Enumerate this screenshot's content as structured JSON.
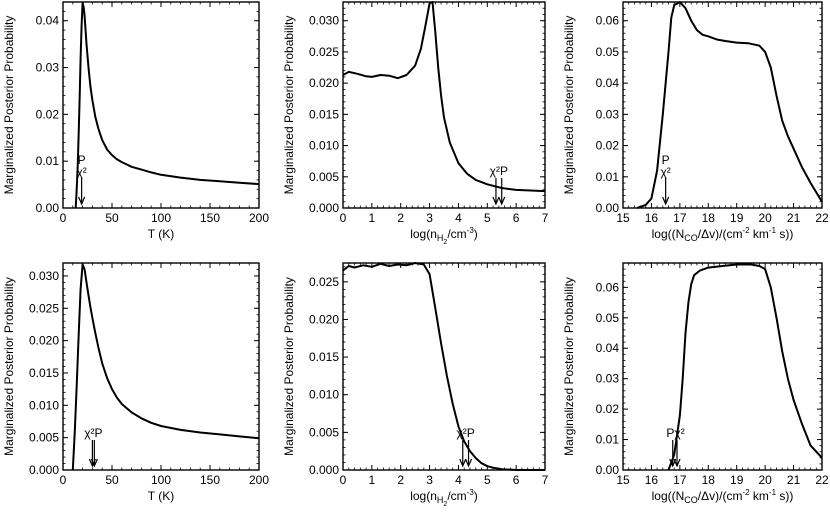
{
  "chart_data": [
    {
      "type": "line",
      "ylabel": "Marginalized Posterior Probability",
      "xlabel_parts": [
        {
          "text": "T (K)"
        }
      ],
      "xlim": [
        0,
        200
      ],
      "ylim": [
        0,
        0.044
      ],
      "xticks": [
        0,
        50,
        100,
        150,
        200
      ],
      "xtick_labels": [
        "0",
        "50",
        "100",
        "150",
        "200"
      ],
      "yticks": [
        0.0,
        0.01,
        0.02,
        0.03,
        0.04
      ],
      "ytick_labels": [
        "0.00",
        "0.01",
        "0.02",
        "0.03",
        "0.04"
      ],
      "series": [
        {
          "name": "posterior",
          "x": [
            13,
            14,
            15,
            16,
            17,
            18,
            19,
            20,
            21,
            22,
            24,
            26,
            28,
            30,
            33,
            36,
            40,
            45,
            50,
            55,
            60,
            70,
            80,
            90,
            100,
            120,
            140,
            160,
            180,
            200
          ],
          "y": [
            0.0,
            0.004,
            0.009,
            0.016,
            0.024,
            0.032,
            0.039,
            0.0438,
            0.043,
            0.041,
            0.035,
            0.03,
            0.026,
            0.023,
            0.0195,
            0.017,
            0.0145,
            0.0125,
            0.0113,
            0.0104,
            0.0098,
            0.0088,
            0.0082,
            0.0076,
            0.0071,
            0.0065,
            0.006,
            0.0057,
            0.0054,
            0.0051
          ]
        }
      ],
      "annotations": [
        {
          "label": "P",
          "x": 19,
          "row": 0
        },
        {
          "label": "χ²",
          "x": 19,
          "row": 1
        }
      ],
      "arrows": [
        19
      ]
    },
    {
      "type": "line",
      "ylabel": "Marginalized Posterior Probability",
      "xlabel_parts": [
        {
          "text": "log(n"
        },
        {
          "text": "H",
          "sub": true
        },
        {
          "text": "2",
          "sub2": true
        },
        {
          "text": "/cm"
        },
        {
          "text": "-3",
          "sup": true
        },
        {
          "text": ")"
        }
      ],
      "xlim": [
        0,
        7
      ],
      "ylim": [
        0,
        0.033
      ],
      "xticks": [
        0,
        1,
        2,
        3,
        4,
        5,
        6,
        7
      ],
      "xtick_labels": [
        "0",
        "1",
        "2",
        "3",
        "4",
        "5",
        "6",
        "7"
      ],
      "yticks": [
        0.0,
        0.005,
        0.01,
        0.015,
        0.02,
        0.025,
        0.03
      ],
      "ytick_labels": [
        "0.000",
        "0.005",
        "0.010",
        "0.015",
        "0.020",
        "0.025",
        "0.030"
      ],
      "series": [
        {
          "name": "posterior",
          "x": [
            0,
            0.2,
            0.5,
            0.8,
            1.0,
            1.3,
            1.6,
            1.9,
            2.2,
            2.5,
            2.7,
            2.85,
            3.0,
            3.1,
            3.2,
            3.3,
            3.4,
            3.5,
            3.7,
            4.0,
            4.3,
            4.6,
            5.0,
            5.5,
            6.0,
            6.5,
            7.0
          ],
          "y": [
            0.0213,
            0.0218,
            0.0215,
            0.0211,
            0.021,
            0.0213,
            0.0212,
            0.0208,
            0.0213,
            0.0228,
            0.0255,
            0.029,
            0.0328,
            0.033,
            0.0282,
            0.0225,
            0.018,
            0.0145,
            0.0105,
            0.0072,
            0.0055,
            0.0045,
            0.0038,
            0.0032,
            0.0029,
            0.0028,
            0.0027
          ]
        }
      ],
      "annotations": [
        {
          "label": "χ²P",
          "x": 5.4,
          "row": 0
        }
      ],
      "arrows": [
        5.3,
        5.5
      ]
    },
    {
      "type": "line",
      "ylabel": "Marginalized Posterior Probability",
      "xlabel_parts": [
        {
          "text": "log((N"
        },
        {
          "text": "CO",
          "sub": true
        },
        {
          "text": "/Δv)/(cm"
        },
        {
          "text": "-2",
          "sup": true
        },
        {
          "text": " km"
        },
        {
          "text": "-1",
          "sup": true
        },
        {
          "text": " s))"
        }
      ],
      "xlim": [
        15,
        22
      ],
      "ylim": [
        0,
        0.066
      ],
      "xticks": [
        15,
        16,
        17,
        18,
        19,
        20,
        21,
        22
      ],
      "xtick_labels": [
        "15",
        "16",
        "17",
        "18",
        "19",
        "20",
        "21",
        "22"
      ],
      "yticks": [
        0.0,
        0.01,
        0.02,
        0.03,
        0.04,
        0.05,
        0.06
      ],
      "ytick_labels": [
        "0.00",
        "0.01",
        "0.02",
        "0.03",
        "0.04",
        "0.05",
        "0.06"
      ],
      "series": [
        {
          "name": "posterior",
          "x": [
            15.5,
            15.8,
            16.0,
            16.2,
            16.4,
            16.6,
            16.7,
            16.8,
            17.0,
            17.2,
            17.4,
            17.6,
            17.8,
            18.0,
            18.3,
            18.6,
            19.0,
            19.4,
            19.8,
            20.0,
            20.2,
            20.4,
            20.6,
            20.8,
            21.0,
            21.3,
            21.6,
            22.0
          ],
          "y": [
            0.0,
            0.001,
            0.003,
            0.012,
            0.03,
            0.05,
            0.061,
            0.065,
            0.066,
            0.064,
            0.06,
            0.057,
            0.0555,
            0.055,
            0.054,
            0.0535,
            0.053,
            0.0528,
            0.052,
            0.05,
            0.045,
            0.036,
            0.028,
            0.023,
            0.019,
            0.013,
            0.008,
            0.002
          ]
        }
      ],
      "annotations": [
        {
          "label": "P",
          "x": 16.5,
          "row": 0
        },
        {
          "label": "χ²",
          "x": 16.5,
          "row": 1
        }
      ],
      "arrows": [
        16.5
      ]
    },
    {
      "type": "line",
      "ylabel": "Marginalized Posterior Probability",
      "xlabel_parts": [
        {
          "text": "T (K)"
        }
      ],
      "xlim": [
        0,
        200
      ],
      "ylim": [
        0,
        0.032
      ],
      "xticks": [
        0,
        50,
        100,
        150,
        200
      ],
      "xtick_labels": [
        "0",
        "50",
        "100",
        "150",
        "200"
      ],
      "yticks": [
        0.0,
        0.005,
        0.01,
        0.015,
        0.02,
        0.025,
        0.03
      ],
      "ytick_labels": [
        "0.000",
        "0.005",
        "0.010",
        "0.015",
        "0.020",
        "0.025",
        "0.030"
      ],
      "series": [
        {
          "name": "posterior",
          "x": [
            10,
            12,
            14,
            16,
            18,
            20,
            22,
            24,
            26,
            28,
            30,
            33,
            36,
            40,
            45,
            50,
            55,
            60,
            70,
            80,
            90,
            100,
            120,
            140,
            160,
            180,
            200
          ],
          "y": [
            0.0,
            0.006,
            0.013,
            0.021,
            0.028,
            0.0318,
            0.031,
            0.029,
            0.027,
            0.0252,
            0.0235,
            0.0212,
            0.019,
            0.0165,
            0.0142,
            0.0125,
            0.0112,
            0.0102,
            0.0089,
            0.008,
            0.0073,
            0.0068,
            0.0062,
            0.0058,
            0.0055,
            0.0052,
            0.0049
          ]
        }
      ],
      "annotations": [
        {
          "label": "χ²P",
          "x": 31,
          "row": 0
        }
      ],
      "arrows": [
        30,
        32
      ]
    },
    {
      "type": "line",
      "ylabel": "Marginalized Posterior Probability",
      "xlabel_parts": [
        {
          "text": "log(n"
        },
        {
          "text": "H",
          "sub": true
        },
        {
          "text": "2",
          "sub2": true
        },
        {
          "text": "/cm"
        },
        {
          "text": "-3",
          "sup": true
        },
        {
          "text": ")"
        }
      ],
      "xlim": [
        0,
        7
      ],
      "ylim": [
        0,
        0.0275
      ],
      "xticks": [
        0,
        1,
        2,
        3,
        4,
        5,
        6,
        7
      ],
      "xtick_labels": [
        "0",
        "1",
        "2",
        "3",
        "4",
        "5",
        "6",
        "7"
      ],
      "yticks": [
        0.0,
        0.005,
        0.01,
        0.015,
        0.02,
        0.025
      ],
      "ytick_labels": [
        "0.000",
        "0.005",
        "0.010",
        "0.015",
        "0.020",
        "0.025"
      ],
      "series": [
        {
          "name": "posterior",
          "x": [
            0,
            0.2,
            0.4,
            0.7,
            1.0,
            1.3,
            1.6,
            1.9,
            2.2,
            2.5,
            2.8,
            3.0,
            3.2,
            3.4,
            3.6,
            3.8,
            4.0,
            4.2,
            4.4,
            4.6,
            4.8,
            5.0,
            5.2,
            5.5,
            6.0,
            6.5,
            7.0
          ],
          "y": [
            0.0265,
            0.0271,
            0.0269,
            0.0272,
            0.027,
            0.0274,
            0.0271,
            0.0273,
            0.0272,
            0.0275,
            0.0273,
            0.026,
            0.0215,
            0.0168,
            0.0125,
            0.0088,
            0.0058,
            0.0038,
            0.0025,
            0.0016,
            0.0009,
            0.0005,
            0.0003,
            0.0001,
            0.0,
            0.0,
            0.0
          ]
        }
      ],
      "annotations": [
        {
          "label": "χ²P",
          "x": 4.25,
          "row": 0
        }
      ],
      "arrows": [
        4.15,
        4.35
      ]
    },
    {
      "type": "line",
      "ylabel": "Marginalized Posterior Probability",
      "xlabel_parts": [
        {
          "text": "log((N"
        },
        {
          "text": "CO",
          "sub": true
        },
        {
          "text": "/Δv)/(cm"
        },
        {
          "text": "-2",
          "sup": true
        },
        {
          "text": " km"
        },
        {
          "text": "-1",
          "sup": true
        },
        {
          "text": " s))"
        }
      ],
      "xlim": [
        15,
        22
      ],
      "ylim": [
        0,
        0.068
      ],
      "xticks": [
        15,
        16,
        17,
        18,
        19,
        20,
        21,
        22
      ],
      "xtick_labels": [
        "15",
        "16",
        "17",
        "18",
        "19",
        "20",
        "21",
        "22"
      ],
      "yticks": [
        0.0,
        0.01,
        0.02,
        0.03,
        0.04,
        0.05,
        0.06
      ],
      "ytick_labels": [
        "0.00",
        "0.01",
        "0.02",
        "0.03",
        "0.04",
        "0.05",
        "0.06"
      ],
      "series": [
        {
          "name": "posterior",
          "x": [
            16.6,
            16.8,
            17.0,
            17.1,
            17.2,
            17.3,
            17.4,
            17.5,
            17.7,
            18.0,
            18.5,
            19.0,
            19.5,
            19.8,
            20.0,
            20.2,
            20.4,
            20.6,
            20.8,
            21.0,
            21.3,
            21.6,
            22.0
          ],
          "y": [
            0.0,
            0.005,
            0.018,
            0.03,
            0.045,
            0.055,
            0.061,
            0.064,
            0.0655,
            0.0665,
            0.067,
            0.0675,
            0.0675,
            0.067,
            0.066,
            0.06,
            0.05,
            0.039,
            0.03,
            0.023,
            0.015,
            0.008,
            0.004
          ]
        }
      ],
      "annotations": [
        {
          "label": "Pχ²",
          "x": 16.85,
          "row": 0
        }
      ],
      "arrows": [
        16.75,
        16.9
      ]
    }
  ]
}
